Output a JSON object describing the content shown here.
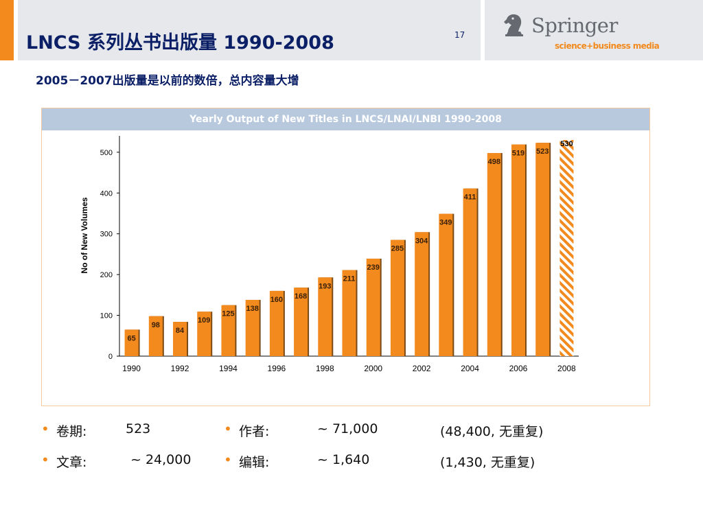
{
  "header": {
    "title": "LNCS 系列丛书出版量  1990-2008",
    "page_number": "17"
  },
  "logo": {
    "word": "Springer",
    "tagline": "science+business media"
  },
  "subtitle": "2005－2007出版量是以前的数倍，总内容量大增",
  "colors": {
    "accent": "#f28a1e",
    "title": "#0b1f66",
    "header_band": "#b8c8dd",
    "chart_header": "#b8c8dd"
  },
  "chart_data": {
    "type": "bar",
    "title": "Yearly Output of New Titles in LNCS/LNAI/LNBI 1990-2008",
    "xlabel": "",
    "ylabel": "No of New Volumes",
    "categories": [
      "1990",
      "1991",
      "1992",
      "1993",
      "1994",
      "1995",
      "1996",
      "1997",
      "1998",
      "1999",
      "2000",
      "2001",
      "2002",
      "2003",
      "2004",
      "2005",
      "2006",
      "2007",
      "2008"
    ],
    "x_tick_labels": [
      "1990",
      "1992",
      "1994",
      "1996",
      "1998",
      "2000",
      "2002",
      "2004",
      "2006",
      "2008"
    ],
    "values": [
      65,
      98,
      84,
      109,
      125,
      138,
      160,
      168,
      193,
      211,
      239,
      285,
      304,
      349,
      411,
      498,
      519,
      523,
      530
    ],
    "hatched_categories": [
      "2008"
    ],
    "y_ticks": [
      0,
      100,
      200,
      300,
      400,
      500
    ],
    "ylim": [
      0,
      530
    ],
    "grid": false,
    "bar_color": "#f28a1e"
  },
  "stats": {
    "volumes": {
      "label": "卷期:",
      "value": "523"
    },
    "articles": {
      "label": "文章:",
      "value": "~ 24,000"
    },
    "authors": {
      "label": "作者:",
      "value": "~ 71,000",
      "note": "(48,400, 无重复)"
    },
    "editors": {
      "label": "编辑:",
      "value": "~ 1,640",
      "note": "(1,430, 无重复)"
    }
  }
}
